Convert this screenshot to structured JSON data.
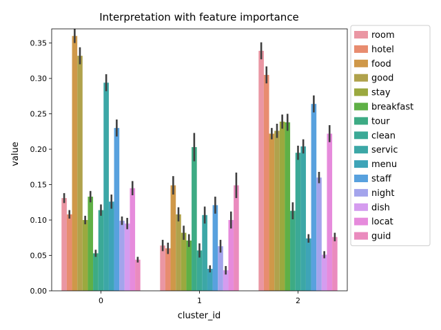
{
  "chart_data": {
    "type": "bar",
    "title": "Interpretation with feature importance",
    "xlabel": "cluster_id",
    "ylabel": "value",
    "ylim": [
      0,
      0.37
    ],
    "yticks": [
      "0.00",
      "0.05",
      "0.10",
      "0.15",
      "0.20",
      "0.25",
      "0.30",
      "0.35"
    ],
    "categories": [
      "0",
      "1",
      "2"
    ],
    "legend_position": "outside-right",
    "grid": false,
    "series": [
      {
        "name": "room",
        "color": "#ea96a3",
        "values": [
          0.131,
          0.064,
          0.339
        ],
        "err": [
          0.007,
          0.008,
          0.012
        ]
      },
      {
        "name": "hotel",
        "color": "#e88c6f",
        "values": [
          0.108,
          0.06,
          0.305
        ],
        "err": [
          0.006,
          0.008,
          0.012
        ]
      },
      {
        "name": "food",
        "color": "#cf9849",
        "values": [
          0.36,
          0.149,
          0.222
        ],
        "err": [
          0.01,
          0.013,
          0.008
        ]
      },
      {
        "name": "good",
        "color": "#b0a24c",
        "values": [
          0.332,
          0.108,
          0.226
        ],
        "err": [
          0.012,
          0.01,
          0.01
        ]
      },
      {
        "name": "stay",
        "color": "#9ba93f",
        "values": [
          0.1,
          0.082,
          0.239
        ],
        "err": [
          0.006,
          0.01,
          0.01
        ]
      },
      {
        "name": "breakfast",
        "color": "#5fb046",
        "values": [
          0.133,
          0.071,
          0.238
        ],
        "err": [
          0.008,
          0.009,
          0.012
        ]
      },
      {
        "name": "tour",
        "color": "#3dab84",
        "values": [
          0.053,
          0.203,
          0.113
        ],
        "err": [
          0.005,
          0.02,
          0.012
        ]
      },
      {
        "name": "clean",
        "color": "#3ba996",
        "values": [
          0.114,
          0.057,
          0.195
        ],
        "err": [
          0.008,
          0.01,
          0.01
        ]
      },
      {
        "name": "servic",
        "color": "#3ca7a6",
        "values": [
          0.294,
          0.107,
          0.204
        ],
        "err": [
          0.012,
          0.012,
          0.01
        ]
      },
      {
        "name": "menu",
        "color": "#3ea4b8",
        "values": [
          0.126,
          0.031,
          0.074
        ],
        "err": [
          0.01,
          0.005,
          0.006
        ]
      },
      {
        "name": "staff",
        "color": "#58a1de",
        "values": [
          0.23,
          0.121,
          0.264
        ],
        "err": [
          0.012,
          0.012,
          0.012
        ]
      },
      {
        "name": "night",
        "color": "#a3a4ec",
        "values": [
          0.099,
          0.063,
          0.16
        ],
        "err": [
          0.006,
          0.009,
          0.008
        ]
      },
      {
        "name": "dish",
        "color": "#d59cef",
        "values": [
          0.095,
          0.029,
          0.051
        ],
        "err": [
          0.008,
          0.006,
          0.005
        ]
      },
      {
        "name": "locat",
        "color": "#e68bdc",
        "values": [
          0.145,
          0.1,
          0.222
        ],
        "err": [
          0.01,
          0.012,
          0.012
        ]
      },
      {
        "name": "guid",
        "color": "#ea8bbe",
        "values": [
          0.044,
          0.149,
          0.076
        ],
        "err": [
          0.004,
          0.018,
          0.006
        ]
      }
    ]
  }
}
